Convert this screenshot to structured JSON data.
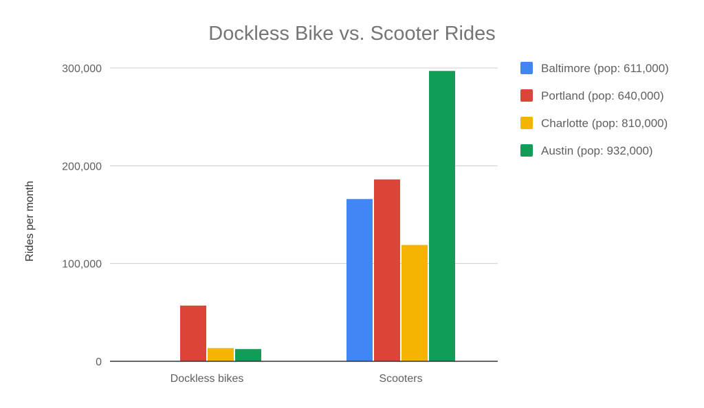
{
  "chart_data": {
    "type": "bar",
    "title": "Dockless Bike vs. Scooter Rides",
    "xlabel": "",
    "ylabel": "Rides per month",
    "categories": [
      "Dockless bikes",
      "Scooters"
    ],
    "series": [
      {
        "name": "Baltimore (pop: 611,000)",
        "color": "#4285f4",
        "values": [
          0,
          166000
        ]
      },
      {
        "name": "Portland (pop: 640,000)",
        "color": "#db4437",
        "values": [
          57000,
          186000
        ]
      },
      {
        "name": "Charlotte (pop: 810,000)",
        "color": "#f4b400",
        "values": [
          13500,
          119000
        ]
      },
      {
        "name": "Austin (pop: 932,000)",
        "color": "#0f9d58",
        "values": [
          12500,
          297000
        ]
      }
    ],
    "ylim": [
      0,
      300000
    ],
    "yticks": [
      0,
      100000,
      200000,
      300000
    ],
    "ytick_labels": [
      "0",
      "100,000",
      "200,000",
      "300,000"
    ],
    "grid": true,
    "legend_position": "right"
  }
}
